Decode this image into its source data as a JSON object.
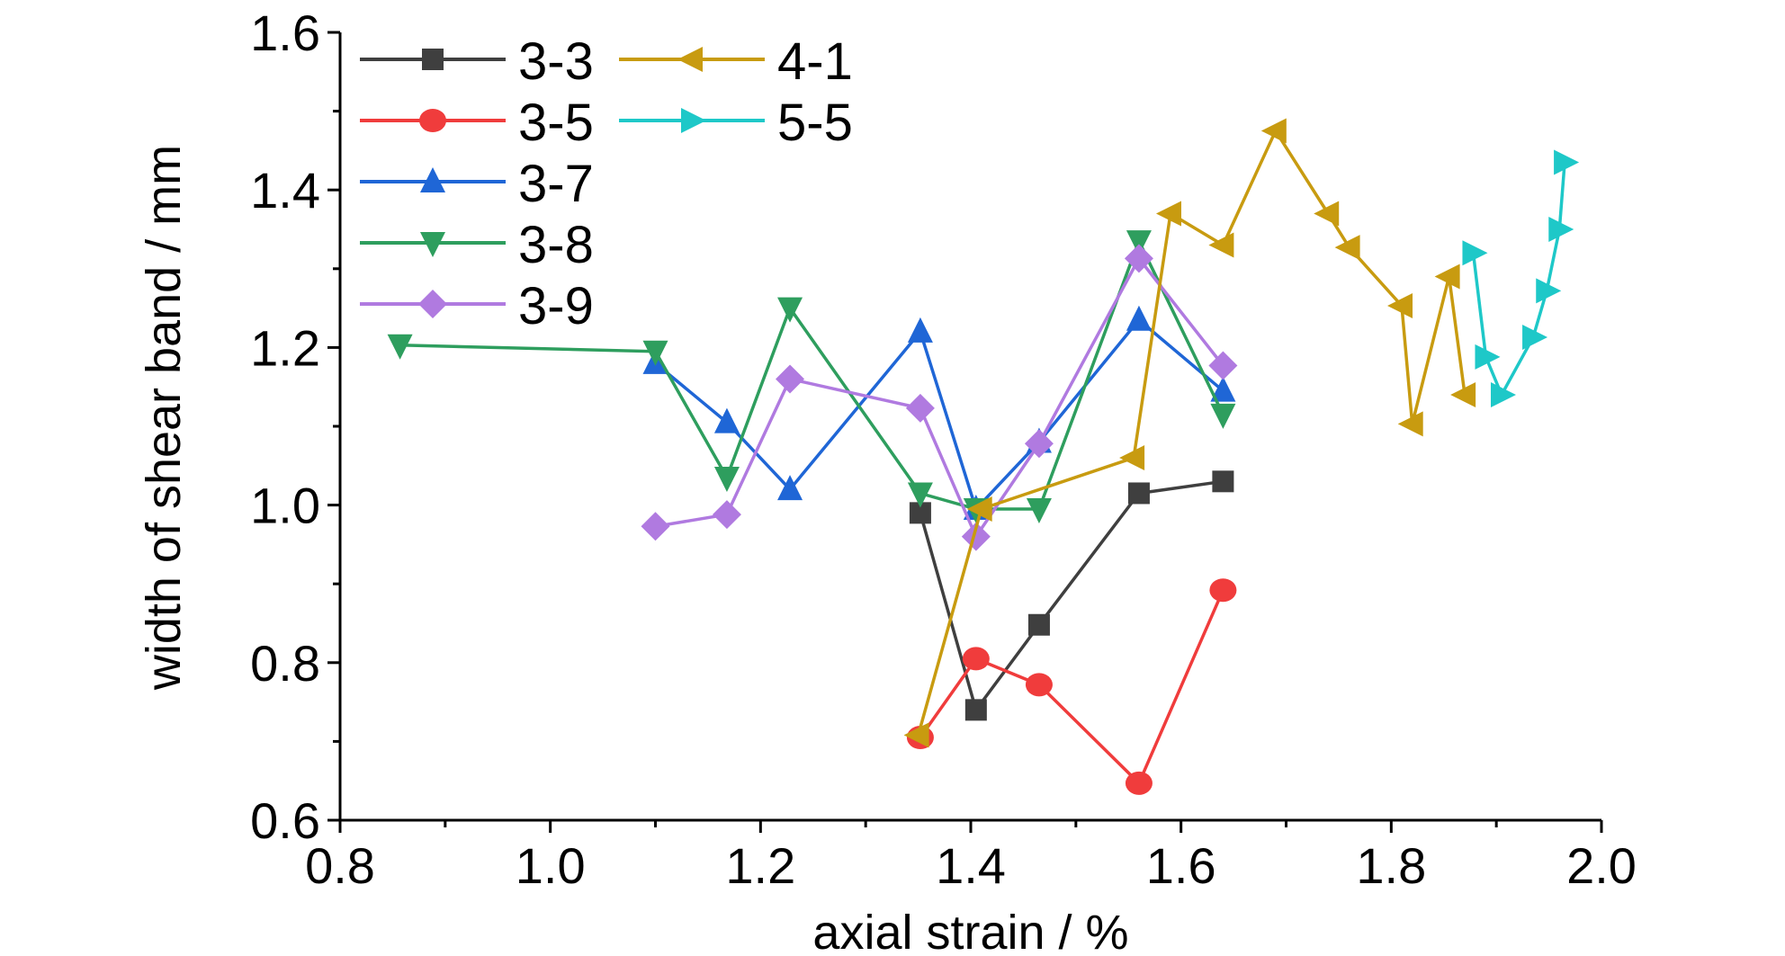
{
  "chart_data": {
    "type": "line",
    "title": "",
    "xlabel": "axial strain / %",
    "ylabel": "width of shear band / mm",
    "xlim": [
      0.8,
      2.0
    ],
    "ylim": [
      0.6,
      1.6
    ],
    "xticks": [
      "0.8",
      "1.0",
      "1.2",
      "1.4",
      "1.6",
      "1.8",
      "2.0"
    ],
    "yticks": [
      "0.6",
      "0.8",
      "1.0",
      "1.2",
      "1.4",
      "1.6"
    ],
    "legend_position": "top-left",
    "series": [
      {
        "name": "3-3",
        "color": "#3f3f3f",
        "marker": "square",
        "points": [
          [
            1.352,
            0.99
          ],
          [
            1.405,
            0.74
          ],
          [
            1.465,
            0.848
          ],
          [
            1.56,
            1.015
          ],
          [
            1.64,
            1.03
          ]
        ]
      },
      {
        "name": "3-5",
        "color": "#f03c3c",
        "marker": "circle",
        "points": [
          [
            1.352,
            0.705
          ],
          [
            1.405,
            0.805
          ],
          [
            1.465,
            0.772
          ],
          [
            1.56,
            0.647
          ],
          [
            1.64,
            0.892
          ]
        ]
      },
      {
        "name": "3-7",
        "color": "#1f66d6",
        "marker": "triangle-up",
        "points": [
          [
            1.1,
            1.18
          ],
          [
            1.168,
            1.105
          ],
          [
            1.228,
            1.02
          ],
          [
            1.352,
            1.22
          ],
          [
            1.405,
            0.995
          ],
          [
            1.465,
            1.08
          ],
          [
            1.56,
            1.235
          ],
          [
            1.64,
            1.145
          ]
        ]
      },
      {
        "name": "3-8",
        "color": "#2e9e5e",
        "marker": "triangle-down",
        "points": [
          [
            0.857,
            1.203
          ],
          [
            1.1,
            1.195
          ],
          [
            1.168,
            1.035
          ],
          [
            1.228,
            1.25
          ],
          [
            1.352,
            1.015
          ],
          [
            1.405,
            0.995
          ],
          [
            1.465,
            0.995
          ],
          [
            1.56,
            1.335
          ],
          [
            1.64,
            1.115
          ]
        ]
      },
      {
        "name": "3-9",
        "color": "#b07ae0",
        "marker": "diamond",
        "points": [
          [
            1.1,
            0.973
          ],
          [
            1.168,
            0.988
          ],
          [
            1.228,
            1.16
          ],
          [
            1.352,
            1.123
          ],
          [
            1.405,
            0.96
          ],
          [
            1.465,
            1.078
          ],
          [
            1.56,
            1.313
          ],
          [
            1.64,
            1.177
          ]
        ]
      },
      {
        "name": "4-1",
        "color": "#c89b10",
        "marker": "triangle-left",
        "points": [
          [
            1.35,
            0.708
          ],
          [
            1.41,
            0.995
          ],
          [
            1.555,
            1.06
          ],
          [
            1.59,
            1.37
          ],
          [
            1.64,
            1.33
          ],
          [
            1.69,
            1.475
          ],
          [
            1.74,
            1.37
          ],
          [
            1.76,
            1.327
          ],
          [
            1.81,
            1.253
          ],
          [
            1.82,
            1.103
          ],
          [
            1.855,
            1.29
          ],
          [
            1.87,
            1.14
          ]
        ]
      },
      {
        "name": "5-5",
        "color": "#1ec8c8",
        "marker": "triangle-right",
        "points": [
          [
            1.878,
            1.32
          ],
          [
            1.89,
            1.188
          ],
          [
            1.905,
            1.14
          ],
          [
            1.935,
            1.213
          ],
          [
            1.948,
            1.272
          ],
          [
            1.96,
            1.35
          ],
          [
            1.965,
            1.435
          ]
        ]
      }
    ]
  }
}
